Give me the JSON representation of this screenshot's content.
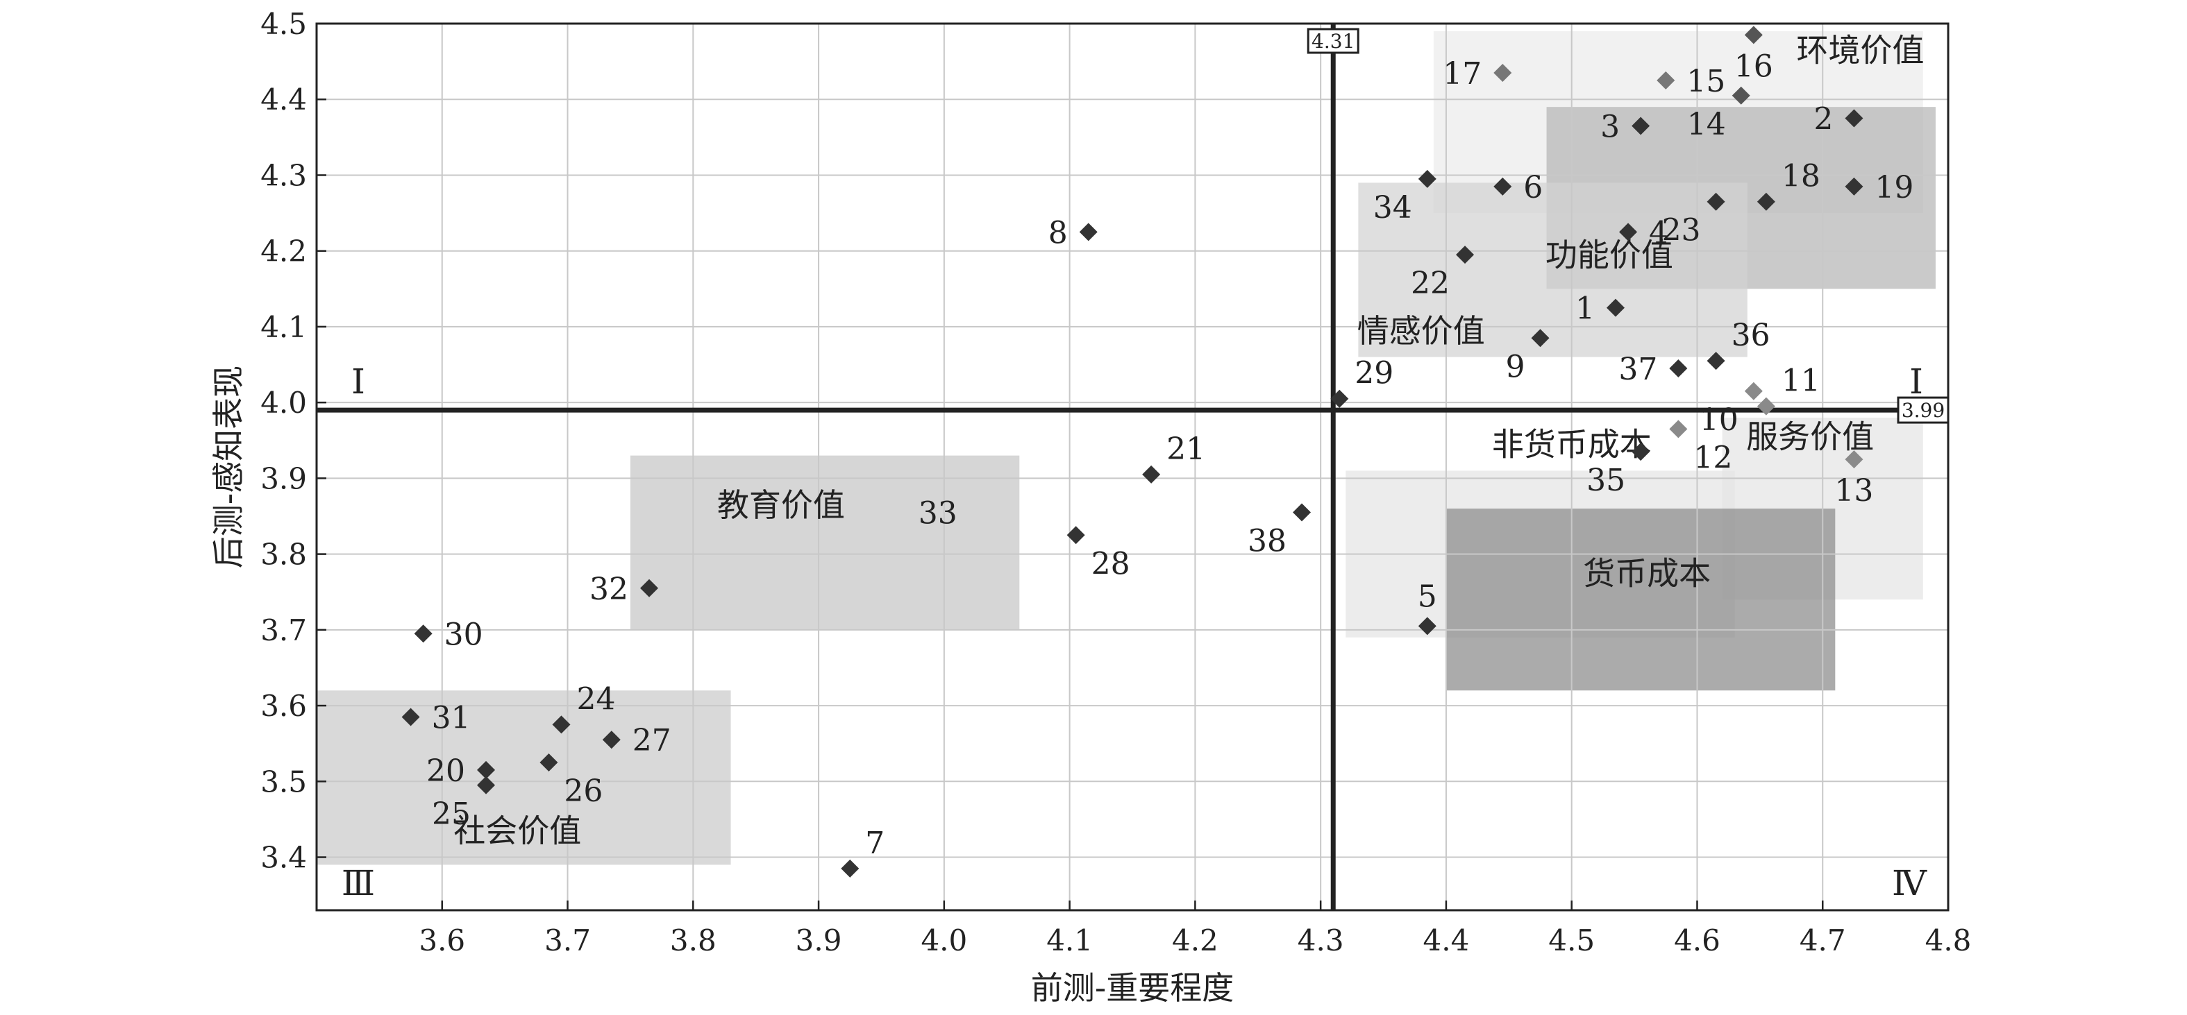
{
  "chart_data": {
    "type": "scatter",
    "title": "",
    "xlabel": "前测-重要程度",
    "ylabel": "后测-感知表现",
    "xlim": [
      3.5,
      4.8
    ],
    "ylim": [
      3.33,
      4.5
    ],
    "x_ticks": [
      "3.6",
      "3.7",
      "3.8",
      "3.9",
      "4.0",
      "4.1",
      "4.2",
      "4.3",
      "4.4",
      "4.5",
      "4.6",
      "4.7",
      "4.8"
    ],
    "y_ticks": [
      "3.4",
      "3.5",
      "3.6",
      "3.7",
      "3.8",
      "3.9",
      "4.0",
      "4.1",
      "4.2",
      "4.3",
      "4.4",
      "4.5"
    ],
    "grid": true,
    "reference_lines": {
      "x": {
        "value": 4.31,
        "label": "4.31"
      },
      "y": {
        "value": 3.99,
        "label": "3.99"
      }
    },
    "quadrant_labels": [
      {
        "text": "I",
        "position": "top-left"
      },
      {
        "text": "I",
        "position": "top-right"
      },
      {
        "text": "Ⅲ",
        "position": "bottom-left"
      },
      {
        "text": "Ⅳ",
        "position": "bottom-right"
      }
    ],
    "regions": [
      {
        "label": "环境价值",
        "x": [
          4.39,
          4.78
        ],
        "y": [
          4.25,
          4.49
        ],
        "shade": "#ececec",
        "label_at": [
          4.73,
          4.45
        ]
      },
      {
        "label": "功能价值",
        "x": [
          4.48,
          4.79
        ],
        "y": [
          4.15,
          4.39
        ],
        "shade": "#b6b6b6",
        "label_at": [
          4.53,
          4.18
        ]
      },
      {
        "label": "情感价值",
        "x": [
          4.33,
          4.64
        ],
        "y": [
          4.06,
          4.29
        ],
        "shade": "#d2d2d2",
        "label_at": [
          4.38,
          4.08
        ]
      },
      {
        "label": "非货币成本",
        "x": [
          4.32,
          4.63
        ],
        "y": [
          3.69,
          3.91
        ],
        "shade": "#e4e4e4",
        "label_at": [
          4.5,
          3.93
        ]
      },
      {
        "label": "服务价值",
        "x": [
          4.62,
          4.78
        ],
        "y": [
          3.74,
          3.98
        ],
        "shade": "#e4e4e4",
        "label_at": [
          4.69,
          3.94
        ]
      },
      {
        "label": "货币成本",
        "x": [
          4.4,
          4.71
        ],
        "y": [
          3.62,
          3.86
        ],
        "shade": "#8a8a8a",
        "label_at": [
          4.56,
          3.76
        ]
      },
      {
        "label": "教育价值",
        "x": [
          3.75,
          4.06
        ],
        "y": [
          3.7,
          3.93
        ],
        "shade": "#c6c6c6",
        "label_at": [
          3.87,
          3.85
        ]
      },
      {
        "label": "社会价值",
        "x": [
          3.5,
          3.83
        ],
        "y": [
          3.39,
          3.62
        ],
        "shade": "#cacaca",
        "label_at": [
          3.66,
          3.42
        ]
      }
    ],
    "points": [
      {
        "id": "1",
        "x": 4.535,
        "y": 4.125,
        "color": "#333333",
        "label_dir": "l"
      },
      {
        "id": "2",
        "x": 4.725,
        "y": 4.375,
        "color": "#333333",
        "label_dir": "l"
      },
      {
        "id": "3",
        "x": 4.555,
        "y": 4.365,
        "color": "#333333",
        "label_dir": "l"
      },
      {
        "id": "4",
        "x": 4.545,
        "y": 4.225,
        "color": "#333333",
        "label_dir": "r"
      },
      {
        "id": "5",
        "x": 4.385,
        "y": 3.705,
        "color": "#333333",
        "label_dir": "u"
      },
      {
        "id": "6",
        "x": 4.445,
        "y": 4.285,
        "color": "#333333",
        "label_dir": "r"
      },
      {
        "id": "7",
        "x": 3.925,
        "y": 3.385,
        "color": "#333333",
        "label_dir": "ur"
      },
      {
        "id": "8",
        "x": 4.115,
        "y": 4.225,
        "color": "#333333",
        "label_dir": "l"
      },
      {
        "id": "9",
        "x": 4.475,
        "y": 4.085,
        "color": "#333333",
        "label_dir": "dl"
      },
      {
        "id": "10",
        "x": 4.645,
        "y": 4.015,
        "color": "#8a8a8a",
        "label_dir": "dl"
      },
      {
        "id": "11",
        "x": 4.655,
        "y": 3.995,
        "color": "#8a8a8a",
        "label_dir": "ur"
      },
      {
        "id": "12",
        "x": 4.585,
        "y": 3.965,
        "color": "#8a8a8a",
        "label_dir": "dr"
      },
      {
        "id": "13",
        "x": 4.725,
        "y": 3.925,
        "color": "#8a8a8a",
        "label_dir": "d"
      },
      {
        "id": "14",
        "x": 4.635,
        "y": 4.405,
        "color": "#555555",
        "label_dir": "dl"
      },
      {
        "id": "15",
        "x": 4.575,
        "y": 4.425,
        "color": "#777777",
        "label_dir": "r"
      },
      {
        "id": "16",
        "x": 4.645,
        "y": 4.485,
        "color": "#555555",
        "label_dir": "d"
      },
      {
        "id": "17",
        "x": 4.445,
        "y": 4.435,
        "color": "#777777",
        "label_dir": "l"
      },
      {
        "id": "18",
        "x": 4.655,
        "y": 4.265,
        "color": "#333333",
        "label_dir": "ur"
      },
      {
        "id": "19",
        "x": 4.725,
        "y": 4.285,
        "color": "#333333",
        "label_dir": "r"
      },
      {
        "id": "20",
        "x": 3.635,
        "y": 3.515,
        "color": "#333333",
        "label_dir": "l"
      },
      {
        "id": "21",
        "x": 4.165,
        "y": 3.905,
        "color": "#333333",
        "label_dir": "ur"
      },
      {
        "id": "22",
        "x": 4.415,
        "y": 4.195,
        "color": "#333333",
        "label_dir": "dl"
      },
      {
        "id": "23",
        "x": 4.615,
        "y": 4.265,
        "color": "#333333",
        "label_dir": "dl"
      },
      {
        "id": "24",
        "x": 3.695,
        "y": 3.575,
        "color": "#333333",
        "label_dir": "ur"
      },
      {
        "id": "25",
        "x": 3.635,
        "y": 3.495,
        "color": "#333333",
        "label_dir": "dl"
      },
      {
        "id": "26",
        "x": 3.685,
        "y": 3.525,
        "color": "#333333",
        "label_dir": "dr"
      },
      {
        "id": "27",
        "x": 3.735,
        "y": 3.555,
        "color": "#333333",
        "label_dir": "r"
      },
      {
        "id": "28",
        "x": 4.105,
        "y": 3.825,
        "color": "#333333",
        "label_dir": "dr"
      },
      {
        "id": "29",
        "x": 4.315,
        "y": 4.005,
        "color": "#333333",
        "label_dir": "ur"
      },
      {
        "id": "30",
        "x": 3.585,
        "y": 3.695,
        "color": "#333333",
        "label_dir": "r"
      },
      {
        "id": "31",
        "x": 3.575,
        "y": 3.585,
        "color": "#333333",
        "label_dir": "r"
      },
      {
        "id": "32",
        "x": 3.765,
        "y": 3.755,
        "color": "#333333",
        "label_dir": "l"
      },
      {
        "id": "33",
        "x": 3.995,
        "y": 3.855,
        "color": "#c6c6c6",
        "label_dir": "c"
      },
      {
        "id": "34",
        "x": 4.385,
        "y": 4.295,
        "color": "#333333",
        "label_dir": "dl"
      },
      {
        "id": "35",
        "x": 4.555,
        "y": 3.935,
        "color": "#333333",
        "label_dir": "dl"
      },
      {
        "id": "36",
        "x": 4.615,
        "y": 4.055,
        "color": "#333333",
        "label_dir": "ur"
      },
      {
        "id": "37",
        "x": 4.585,
        "y": 4.045,
        "color": "#333333",
        "label_dir": "l"
      },
      {
        "id": "38",
        "x": 4.285,
        "y": 3.855,
        "color": "#333333",
        "label_dir": "dl"
      }
    ]
  }
}
